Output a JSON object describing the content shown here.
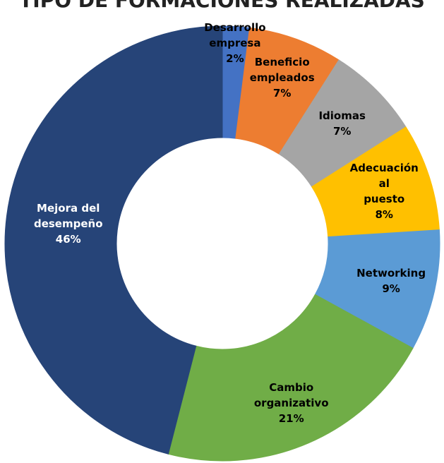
{
  "chart_data": {
    "type": "donut",
    "title": "TIPO DE FORMACIONES REALIZADAS",
    "categories": [
      "Desarrollo\nempresa",
      "Beneficio\nempleados",
      "Idiomas",
      "Adecuación al\npuesto",
      "Networking",
      "Cambio\norganizativo",
      "Mejora del\ndesempeño"
    ],
    "values": [
      2,
      7,
      7,
      8,
      9,
      21,
      46
    ],
    "value_labels": [
      "2%",
      "7%",
      "7%",
      "8%",
      "9%",
      "21%",
      "46%"
    ],
    "colors": [
      "#4472c4",
      "#ed7d31",
      "#a5a5a5",
      "#ffc000",
      "#5b9bd5",
      "#70ad47",
      "#264478"
    ]
  }
}
